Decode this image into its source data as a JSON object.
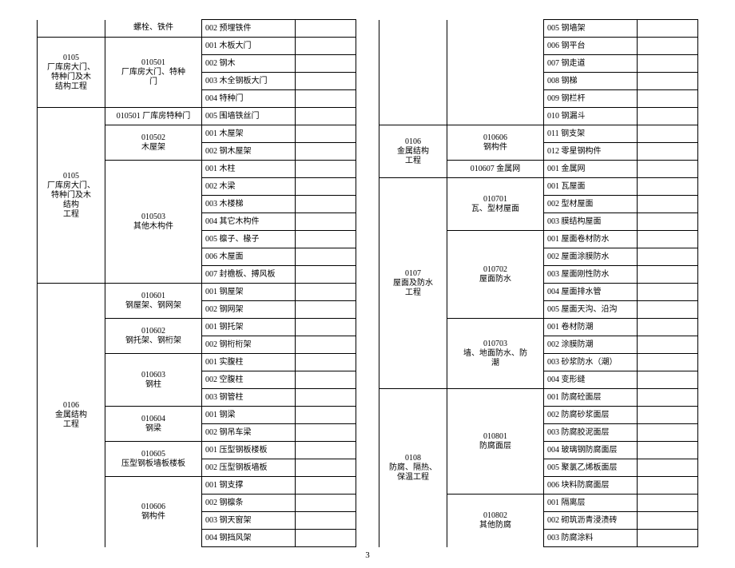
{
  "page_number": "3",
  "left": {
    "rows": [
      {
        "c1": "",
        "c1span": 1,
        "c2": "螺栓、铁件",
        "c2span": 1,
        "c3": "002 预埋铁件",
        "c1top": true,
        "c2top": true
      },
      {
        "c1": "0105\n厂库房大门、\n特种门及木\n结构工程",
        "c1span": 4,
        "c2": "010501\n厂库房大门、特种\n门",
        "c2span": 4,
        "c3": "001 木板大门"
      },
      {
        "c3": "002 钢木"
      },
      {
        "c3": "003 木全钢板大门"
      },
      {
        "c3": "004 特种门"
      },
      {
        "c1": "0105\n厂库房大门、\n特种门及木\n结构\n工程",
        "c1span": 10,
        "c2": "010501 厂库房特种门",
        "c2span": 1,
        "c3": "005 围墙铁丝门"
      },
      {
        "c2": "010502\n木屋架",
        "c2span": 2,
        "c3": "001 木屋架"
      },
      {
        "c3": "002 钢木屋架"
      },
      {
        "c2": "010503\n其他木构件",
        "c2span": 7,
        "c3": "001 木柱"
      },
      {
        "c3": "002 木梁"
      },
      {
        "c3": "003 木楼梯"
      },
      {
        "c3": "004 其它木构件"
      },
      {
        "c3": "005 檩子、椽子"
      },
      {
        "c3": "006 木屋面"
      },
      {
        "c3": "007 封檐板、搏风板"
      },
      {
        "c1": "0106\n金属结构\n工程",
        "c1span": 15,
        "c1bot": true,
        "c2": "010601\n钢屋架、钢网架",
        "c2span": 2,
        "c3": "001 钢屋架"
      },
      {
        "c3": "002 钢网架"
      },
      {
        "c2": "010602\n钢托架、钢桁架",
        "c2span": 2,
        "c3": "001 钢托架"
      },
      {
        "c3": "002 钢桁桁架"
      },
      {
        "c2": "010603\n钢柱",
        "c2span": 3,
        "c3": "001 实腹柱"
      },
      {
        "c3": "002 空腹柱"
      },
      {
        "c3": "003 钢管柱"
      },
      {
        "c2": "010604\n钢梁",
        "c2span": 2,
        "c3": "001 钢梁"
      },
      {
        "c3": "002 钢吊车梁"
      },
      {
        "c2": "010605\n压型钢板墙板楼板",
        "c2span": 2,
        "c3": "001 压型钢板楼板"
      },
      {
        "c3": "002 压型钢板墙板"
      },
      {
        "c2": "010606\n钢构件",
        "c2span": 4,
        "c2bot": true,
        "c3": "001 钢支撑"
      },
      {
        "c3": "002 钢檩条"
      },
      {
        "c3": "003 钢天窗架"
      },
      {
        "c3": "004 钢挡风架"
      }
    ]
  },
  "right": {
    "rows": [
      {
        "c1": "",
        "c1span": 6,
        "c2": "",
        "c2span": 6,
        "c3": "005 钢墙架",
        "c1top": true,
        "c2top": true
      },
      {
        "c3": "006 钢平台"
      },
      {
        "c3": "007 钢走道"
      },
      {
        "c3": "008 钢梯"
      },
      {
        "c3": "009 钢栏杆"
      },
      {
        "c3": "010 钢漏斗"
      },
      {
        "c1": "0106\n金属结构\n工程",
        "c1span": 3,
        "c2": "010606\n钢构件",
        "c2span": 2,
        "c3": "011 钢支架"
      },
      {
        "c3": "012 零星钢构件"
      },
      {
        "c2": "010607 金属网",
        "c2span": 1,
        "c3": "001 金属网"
      },
      {
        "c1": "0107\n屋面及防水\n工程",
        "c1span": 12,
        "c2": "010701\n瓦、型材屋面",
        "c2span": 3,
        "c3": "001 瓦屋面"
      },
      {
        "c3": "002 型材屋面"
      },
      {
        "c3": "003 膜结构屋面"
      },
      {
        "c2": "010702\n屋面防水",
        "c2span": 5,
        "c3": "001 屋面卷材防水"
      },
      {
        "c3": "002 屋面涂膜防水"
      },
      {
        "c3": "003 屋面刚性防水"
      },
      {
        "c3": "004 屋面排水管"
      },
      {
        "c3": "005 屋面天沟、沿沟"
      },
      {
        "c2": "010703\n墙、地面防水、防\n潮",
        "c2span": 4,
        "c3": "001 卷材防潮"
      },
      {
        "c3": "002 涂膜防潮"
      },
      {
        "c3": "003 砂浆防水（潮）"
      },
      {
        "c3": "004 变形缝"
      },
      {
        "c1": "0108\n防腐、隔热、\n保温工程",
        "c1span": 9,
        "c1bot": true,
        "c2": "010801\n防腐面层",
        "c2span": 6,
        "c3": "001 防腐砼面层"
      },
      {
        "c3": "002 防腐砂浆面层"
      },
      {
        "c3": "003 防腐胶泥面层"
      },
      {
        "c3": "004 玻璃钢防腐面层"
      },
      {
        "c3": "005 聚氯乙烯板面层"
      },
      {
        "c3": "006 块料防腐面层"
      },
      {
        "c2": "010802\n其他防腐",
        "c2span": 3,
        "c2bot": true,
        "c3": "001 隔离层"
      },
      {
        "c3": "002 砌筑沥青浸渍砖"
      },
      {
        "c3": "003 防腐涂料"
      }
    ]
  }
}
